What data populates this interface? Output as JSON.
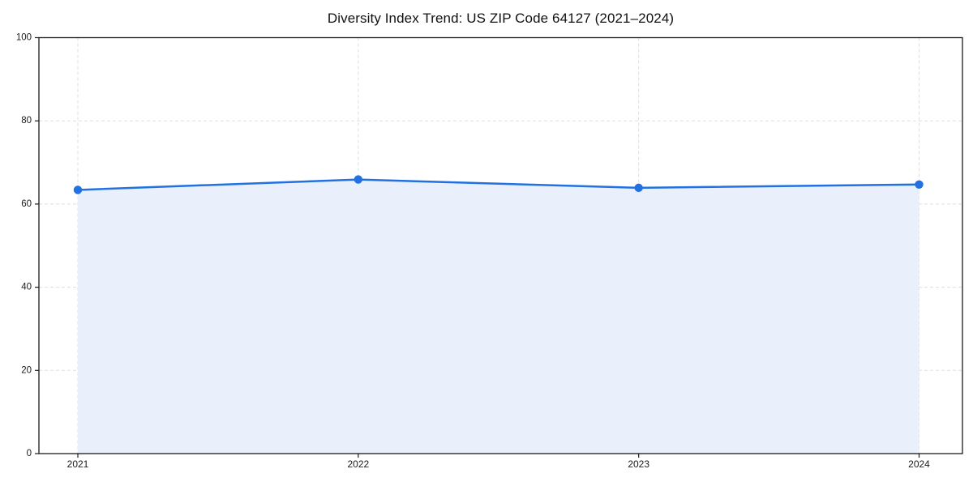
{
  "figure": {
    "title": "Diversity Index Trend: US ZIP Code 64127 (2021–2024)"
  },
  "colors": {
    "line": "#2271e3",
    "marker": "#2271e3",
    "area_fill": "#e9f0fc",
    "grid": "#dedede",
    "axis": "#1a1a1a",
    "tick_label": "#1a1a1a",
    "background": "#ffffff"
  },
  "chart_data": {
    "type": "line",
    "title": "Diversity Index Trend: US ZIP Code 64127 (2021–2024)",
    "categories": [
      "2021",
      "2022",
      "2023",
      "2024"
    ],
    "series": [
      {
        "name": "Diversity Index",
        "values": [
          63.4,
          65.9,
          63.9,
          64.7
        ]
      }
    ],
    "xlabel": "",
    "ylabel": "",
    "ylim": [
      0,
      100
    ],
    "yticks": [
      0,
      20,
      40,
      60,
      80,
      100
    ],
    "grid": "dashed-both-axes",
    "legend_position": "none",
    "marker": "circle",
    "area_fill": true,
    "area_fill_to": 0
  }
}
